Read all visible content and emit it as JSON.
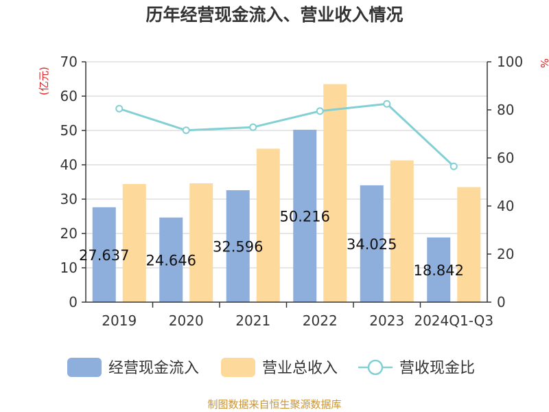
{
  "chart_data": {
    "type": "bar",
    "title": "历年经营现金流入、营业收入情况",
    "categories": [
      "2019",
      "2020",
      "2021",
      "2022",
      "2023",
      "2024Q1-Q3"
    ],
    "series": [
      {
        "name": "经营现金流入",
        "type": "bar",
        "axis": "left",
        "color": "#8eaedb",
        "values": [
          27.637,
          24.646,
          32.596,
          50.216,
          34.025,
          18.842
        ],
        "labels": [
          "27.637",
          "24.646",
          "32.596",
          "50.216",
          "34.025",
          "18.842"
        ]
      },
      {
        "name": "营业总收入",
        "type": "bar",
        "axis": "left",
        "color": "#fdd99b",
        "values": [
          34.4,
          34.6,
          44.7,
          63.5,
          41.3,
          33.5
        ]
      },
      {
        "name": "营收现金比",
        "type": "line",
        "axis": "right",
        "color": "#82d0d4",
        "values": [
          80.5,
          71.5,
          72.8,
          79.5,
          82.5,
          56.5
        ]
      }
    ],
    "y_left": {
      "unit_label": "(亿元)",
      "ylim": [
        0,
        70
      ],
      "ticks": [
        "0",
        "10",
        "20",
        "30",
        "40",
        "50",
        "60",
        "70"
      ]
    },
    "y_right": {
      "unit_label": "%",
      "ylim": [
        0,
        100
      ],
      "ticks": [
        "0",
        "20",
        "40",
        "60",
        "80",
        "100"
      ]
    },
    "grid": true,
    "legend_position": "bottom"
  },
  "source": "制图数据来自恒生聚源数据库"
}
